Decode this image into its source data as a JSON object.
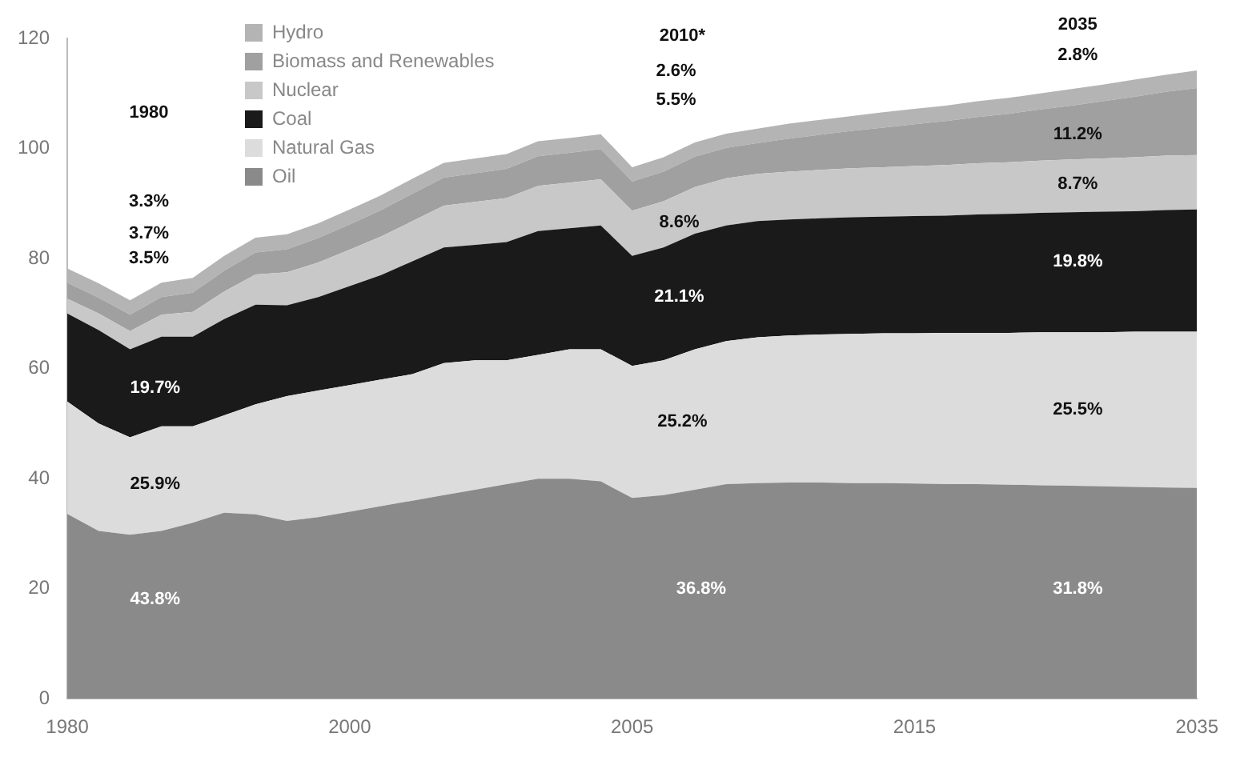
{
  "chart_data": {
    "type": "area",
    "stacked": true,
    "categories": [
      "1980",
      null,
      null,
      null,
      null,
      null,
      null,
      null,
      null,
      "2000",
      null,
      null,
      null,
      null,
      null,
      null,
      null,
      null,
      "2005",
      null,
      null,
      null,
      null,
      null,
      null,
      null,
      null,
      "2015",
      null,
      null,
      null,
      null,
      null,
      null,
      null,
      null,
      "2035"
    ],
    "series": [
      {
        "name": "Oil",
        "color": "#8a8a8a",
        "values": [
          33.6,
          30.5,
          29.8,
          30.5,
          32,
          33.8,
          33.5,
          32.3,
          33,
          34,
          35,
          36,
          37,
          38,
          39,
          40,
          40,
          39.5,
          36.5,
          37,
          38,
          39,
          39.2,
          39.3,
          39.3,
          39.2,
          39.2,
          39.1,
          39,
          39,
          38.9,
          38.8,
          38.7,
          38.6,
          38.5,
          38.4,
          38.3
        ]
      },
      {
        "name": "Natural Gas",
        "color": "#dcdcdc",
        "values": [
          20.4,
          19.5,
          17.7,
          19,
          17.5,
          17.7,
          20,
          22.7,
          23,
          23,
          23,
          23,
          24,
          23.5,
          22.5,
          22.5,
          23.5,
          24,
          24,
          24.5,
          25.5,
          26,
          26.5,
          26.7,
          26.9,
          27.1,
          27.2,
          27.3,
          27.5,
          27.5,
          27.6,
          27.8,
          27.9,
          28,
          28.2,
          28.3,
          28.4
        ]
      },
      {
        "name": "Coal",
        "color": "#1a1a1a",
        "values": [
          16,
          17,
          16,
          16.3,
          16.3,
          17.5,
          18.1,
          16.5,
          17,
          18,
          19,
          20.5,
          21,
          21,
          21.5,
          22.5,
          22,
          22.5,
          20,
          20.5,
          21,
          21,
          21.1,
          21.1,
          21.1,
          21.2,
          21.2,
          21.3,
          21.3,
          21.5,
          21.6,
          21.7,
          21.8,
          21.9,
          21.9,
          22.1,
          22.2
        ]
      },
      {
        "name": "Nuclear",
        "color": "#c8c8c8",
        "values": [
          2.7,
          3,
          3.3,
          4,
          4.5,
          5,
          5.5,
          6,
          6.3,
          6.6,
          7,
          7.3,
          7.6,
          7.8,
          8,
          8.2,
          8.3,
          8.4,
          8.2,
          8.4,
          8.5,
          8.6,
          8.6,
          8.7,
          8.8,
          8.9,
          9,
          9.1,
          9.2,
          9.3,
          9.4,
          9.5,
          9.6,
          9.7,
          9.8,
          9.9,
          9.9
        ]
      },
      {
        "name": "Biomass and Renewables",
        "color": "#a0a0a0",
        "values": [
          2.9,
          2.9,
          3,
          3.2,
          3.5,
          3.8,
          4,
          4.2,
          4.4,
          4.6,
          4.8,
          5,
          5.1,
          5.2,
          5.3,
          5.4,
          5.4,
          5.5,
          5.3,
          5.4,
          5.5,
          5.5,
          5.6,
          6,
          6.4,
          6.8,
          7.2,
          7.6,
          8,
          8.4,
          8.8,
          9.3,
          9.8,
          10.4,
          11,
          11.6,
          12.2
        ]
      },
      {
        "name": "Hydro",
        "color": "#b4b4b4",
        "values": [
          2.6,
          2.6,
          2.6,
          2.6,
          2.7,
          2.7,
          2.7,
          2.7,
          2.7,
          2.7,
          2.7,
          2.7,
          2.7,
          2.7,
          2.7,
          2.7,
          2.7,
          2.7,
          2.6,
          2.6,
          2.6,
          2.6,
          2.6,
          2.7,
          2.7,
          2.7,
          2.8,
          2.8,
          2.8,
          2.9,
          2.9,
          2.9,
          3,
          3,
          3.1,
          3.1,
          3.2
        ]
      }
    ],
    "ylim": [
      0,
      120
    ],
    "yticks": [
      0,
      20,
      40,
      60,
      80,
      100,
      120
    ],
    "grid": false,
    "legend": "top left",
    "annotations": [
      "1980",
      "3.3%",
      "3.7%",
      "3.5%",
      "19.7%",
      "25.9%",
      "43.8%",
      "2010*",
      "2.6%",
      "5.5%",
      "8.6%",
      "21.1%",
      "25.2%",
      "36.8%",
      "2035",
      "2.8%",
      "11.2%",
      "8.7%",
      "19.8%",
      "25.5%",
      "31.8%"
    ]
  }
}
